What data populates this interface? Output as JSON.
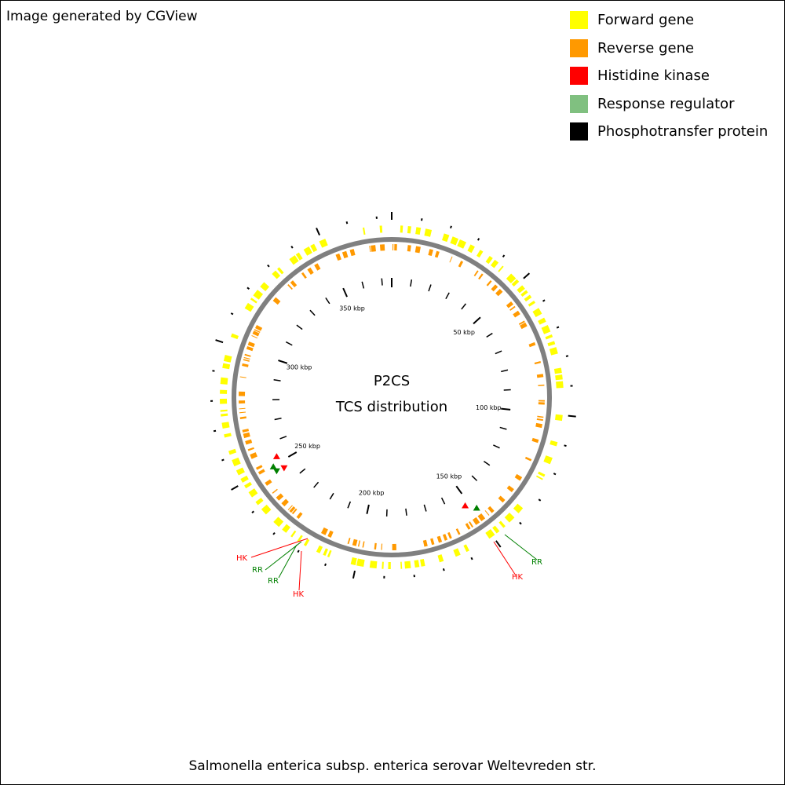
{
  "credit": "Image generated by CGView",
  "organism": "Salmonella enterica subsp. enterica serovar Weltevreden str.",
  "center": {
    "line1": "P2CS",
    "line2": "TCS distribution"
  },
  "legend": [
    {
      "label": "Forward gene",
      "color": "#ffff00"
    },
    {
      "label": "Reverse gene",
      "color": "#ff9900"
    },
    {
      "label": "Histidine kinase",
      "color": "#ff0000"
    },
    {
      "label": "Response regulator",
      "color": "#80c080"
    },
    {
      "label": "Phosphotransfer protein",
      "color": "#000000"
    }
  ],
  "map": {
    "sequence_length_kbp": 375,
    "major_tick_labels": [
      "50 kbp",
      "100 kbp",
      "150 kbp",
      "200 kbp",
      "250 kbp",
      "300 kbp",
      "350 kbp"
    ],
    "major_tick_positions_kbp": [
      50,
      100,
      150,
      200,
      250,
      300,
      350
    ],
    "tcs_annotations": [
      {
        "label": "HK",
        "position_kbp": 262,
        "color": "#ff0000"
      },
      {
        "label": "RR",
        "position_kbp": 259.5,
        "color": "#008000"
      },
      {
        "label": "RR",
        "position_kbp": 256.5,
        "color": "#008000"
      },
      {
        "label": "HK",
        "position_kbp": 253.5,
        "color": "#ff0000"
      },
      {
        "label": "RR",
        "position_kbp": 152.5,
        "color": "#008000"
      },
      {
        "label": "HK",
        "position_kbp": 156.5,
        "color": "#ff0000"
      }
    ],
    "colors": {
      "forward": "#ffff00",
      "reverse": "#ff9900",
      "backbone": "#808080",
      "hk": "#ff0000",
      "rr": "#008000",
      "ticks": "#000000"
    }
  }
}
